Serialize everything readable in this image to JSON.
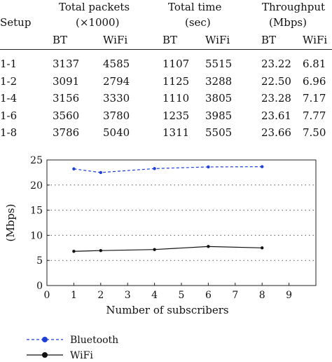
{
  "table": {
    "headers": {
      "setup": "Setup",
      "group1_line1": "Total packets",
      "group1_line2": "(×1000)",
      "group2_line1": "Total time",
      "group2_line2": "(sec)",
      "group3_line1": "Throughput",
      "group3_line2": "(Mbps)",
      "sub": [
        "BT",
        "WiFi",
        "BT",
        "WiFi",
        "BT",
        "WiFi"
      ]
    },
    "rows": [
      [
        "1-1",
        "3137",
        "4585",
        "1107",
        "5515",
        "23.22",
        "6.81"
      ],
      [
        "1-2",
        "3091",
        "2794",
        "1125",
        "3288",
        "22.50",
        "6.96"
      ],
      [
        "1-4",
        "3156",
        "3330",
        "1110",
        "3805",
        "23.28",
        "7.17"
      ],
      [
        "1-6",
        "3560",
        "3780",
        "1235",
        "3985",
        "23.61",
        "7.77"
      ],
      [
        "1-8",
        "3786",
        "5040",
        "1311",
        "5505",
        "23.66",
        "7.50"
      ]
    ]
  },
  "chart_data": {
    "type": "line",
    "xlabel": "Number of subscribers",
    "ylabel": "(Mbps)",
    "xlim": [
      0,
      10
    ],
    "ylim": [
      0,
      25
    ],
    "xticks": [
      0,
      1,
      2,
      3,
      4,
      5,
      6,
      7,
      8,
      9
    ],
    "yticks": [
      0,
      5,
      10,
      15,
      20,
      25
    ],
    "grid": "horizontal dotted",
    "legend_position": "bottom-left",
    "series": [
      {
        "name": "Bluetooth",
        "x": [
          1,
          2,
          4,
          6,
          8
        ],
        "values": [
          23.22,
          22.5,
          23.28,
          23.61,
          23.66
        ],
        "color": "#1f3fd6",
        "style": "dashed"
      },
      {
        "name": "WiFi",
        "x": [
          1,
          2,
          4,
          6,
          8
        ],
        "values": [
          6.81,
          6.96,
          7.17,
          7.77,
          7.5
        ],
        "color": "#111111",
        "style": "solid"
      }
    ]
  }
}
